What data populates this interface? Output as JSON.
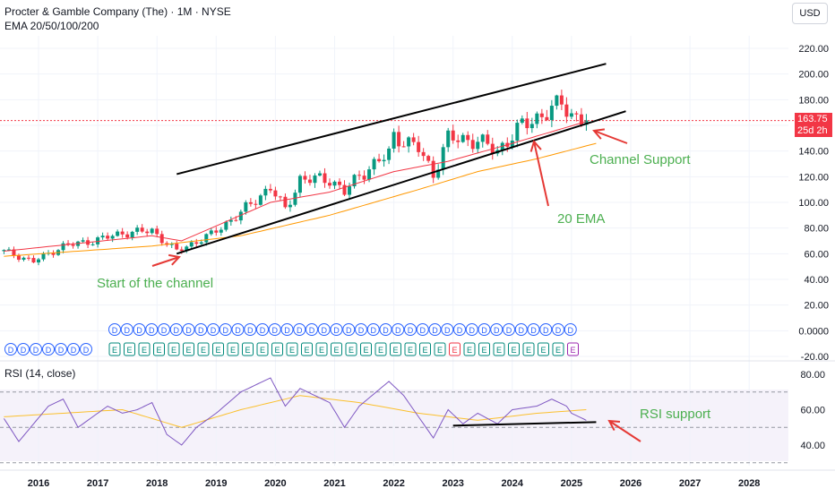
{
  "header": {
    "title": "Procter & Gamble Company (The) · 1M · NYSE",
    "indicator": "EMA 20/50/100/200"
  },
  "currency_label": "USD",
  "last_price": {
    "value": "163.75",
    "countdown": "25d 2h"
  },
  "rsi_label": "RSI (14, close)",
  "annotations": {
    "start_channel": "Start of the channel",
    "channel_support": "Channel Support",
    "ema20": "20 EMA",
    "rsi_support": "RSI support"
  },
  "colors": {
    "up": "#089981",
    "down": "#f23645",
    "ema20": "#f23645",
    "ema50": "#ff9800",
    "rsi_line": "#7e57c2",
    "rsi_ma": "#fbc02d",
    "annotation_text": "#4caf50",
    "arrow": "#e53935",
    "dividend_marker": "#2962ff",
    "earnings_marker": "#00897b"
  },
  "markers": {
    "dividend_symbol": "D",
    "earnings_symbol": "E",
    "dividend_count": 38,
    "earnings_count": 39,
    "earnings_down_index": 23
  },
  "chart_data": [
    {
      "type": "candlestick",
      "title": "Procter & Gamble Company (The) · 1M · NYSE",
      "x_axis": {
        "ticks": [
          "2016",
          "2017",
          "2018",
          "2019",
          "2020",
          "2021",
          "2022",
          "2023",
          "2024",
          "2025",
          "2026",
          "2027",
          "2028"
        ]
      },
      "y_axis": {
        "ticks": [
          "220.00",
          "200.00",
          "180.00",
          "160.00",
          "140.00",
          "120.00",
          "100.00",
          "80.00",
          "60.00",
          "40.00",
          "20.00",
          "0.0000",
          "-20.00"
        ],
        "range": [
          -20,
          220
        ]
      },
      "price_anchors": [
        [
          "2015-06",
          62
        ],
        [
          "2015-12",
          54
        ],
        [
          "2016-06",
          66
        ],
        [
          "2016-12",
          70
        ],
        [
          "2017-06",
          76
        ],
        [
          "2017-12",
          78
        ],
        [
          "2018-03",
          68
        ],
        [
          "2018-05",
          62
        ],
        [
          "2018-12",
          75
        ],
        [
          "2019-06",
          92
        ],
        [
          "2019-12",
          112
        ],
        [
          "2020-03",
          94
        ],
        [
          "2020-06",
          118
        ],
        [
          "2020-12",
          118
        ],
        [
          "2021-03",
          108
        ],
        [
          "2021-06",
          121
        ],
        [
          "2021-12",
          138
        ],
        [
          "2022-01",
          152
        ],
        [
          "2022-06",
          142
        ],
        [
          "2022-09",
          122
        ],
        [
          "2022-12",
          150
        ],
        [
          "2023-06",
          148
        ],
        [
          "2023-10",
          140
        ],
        [
          "2024-03",
          160
        ],
        [
          "2024-09",
          172
        ],
        [
          "2024-11",
          178
        ],
        [
          "2025-01",
          168
        ],
        [
          "2025-04",
          163.75
        ]
      ],
      "ema20_anchors": [
        [
          "2015-06",
          62
        ],
        [
          "2017-12",
          74
        ],
        [
          "2018-06",
          70
        ],
        [
          "2019-12",
          100
        ],
        [
          "2020-12",
          108
        ],
        [
          "2022-01",
          124
        ],
        [
          "2022-12",
          132
        ],
        [
          "2024-01",
          146
        ],
        [
          "2025-04",
          163
        ]
      ],
      "ema50_anchors": [
        [
          "2015-06",
          58
        ],
        [
          "2017-12",
          66
        ],
        [
          "2019-06",
          74
        ],
        [
          "2020-12",
          90
        ],
        [
          "2022-06",
          110
        ],
        [
          "2023-06",
          124
        ],
        [
          "2024-06",
          134
        ],
        [
          "2025-06",
          146
        ]
      ],
      "channel": {
        "upper": [
          [
            "2018-05",
            122
          ],
          [
            "2025-08",
            208
          ]
        ],
        "lower": [
          [
            "2018-05",
            60
          ],
          [
            "2025-12",
            171
          ]
        ]
      },
      "last_value": 163.75
    },
    {
      "type": "line",
      "title": "RSI (14, close)",
      "y_axis": {
        "ticks": [
          "80.00",
          "60.00",
          "40.00"
        ],
        "range": [
          24,
          86
        ],
        "bands": [
          30,
          50,
          70
        ]
      },
      "rsi_anchors": [
        [
          "2015-06",
          55
        ],
        [
          "2015-09",
          42
        ],
        [
          "2015-12",
          52
        ],
        [
          "2016-03",
          62
        ],
        [
          "2016-06",
          66
        ],
        [
          "2016-09",
          50
        ],
        [
          "2016-12",
          56
        ],
        [
          "2017-03",
          62
        ],
        [
          "2017-06",
          58
        ],
        [
          "2017-09",
          60
        ],
        [
          "2017-12",
          64
        ],
        [
          "2018-03",
          46
        ],
        [
          "2018-06",
          40
        ],
        [
          "2018-09",
          50
        ],
        [
          "2019-01",
          58
        ],
        [
          "2019-06",
          70
        ],
        [
          "2019-12",
          78
        ],
        [
          "2020-03",
          62
        ],
        [
          "2020-06",
          72
        ],
        [
          "2020-12",
          64
        ],
        [
          "2021-03",
          50
        ],
        [
          "2021-06",
          62
        ],
        [
          "2021-12",
          76
        ],
        [
          "2022-03",
          68
        ],
        [
          "2022-06",
          56
        ],
        [
          "2022-09",
          44
        ],
        [
          "2022-12",
          60
        ],
        [
          "2023-03",
          52
        ],
        [
          "2023-06",
          58
        ],
        [
          "2023-10",
          52
        ],
        [
          "2024-01",
          60
        ],
        [
          "2024-06",
          62
        ],
        [
          "2024-09",
          66
        ],
        [
          "2024-12",
          62
        ],
        [
          "2025-01",
          58
        ],
        [
          "2025-04",
          54
        ]
      ],
      "rsi_ma_anchors": [
        [
          "2015-06",
          56
        ],
        [
          "2016-06",
          58
        ],
        [
          "2017-06",
          60
        ],
        [
          "2018-06",
          50
        ],
        [
          "2019-06",
          60
        ],
        [
          "2020-06",
          68
        ],
        [
          "2021-06",
          64
        ],
        [
          "2022-06",
          58
        ],
        [
          "2023-06",
          54
        ],
        [
          "2024-06",
          58
        ],
        [
          "2025-04",
          60
        ]
      ],
      "support_line": [
        [
          "2023-01",
          51
        ],
        [
          "2025-06",
          53
        ]
      ]
    }
  ]
}
